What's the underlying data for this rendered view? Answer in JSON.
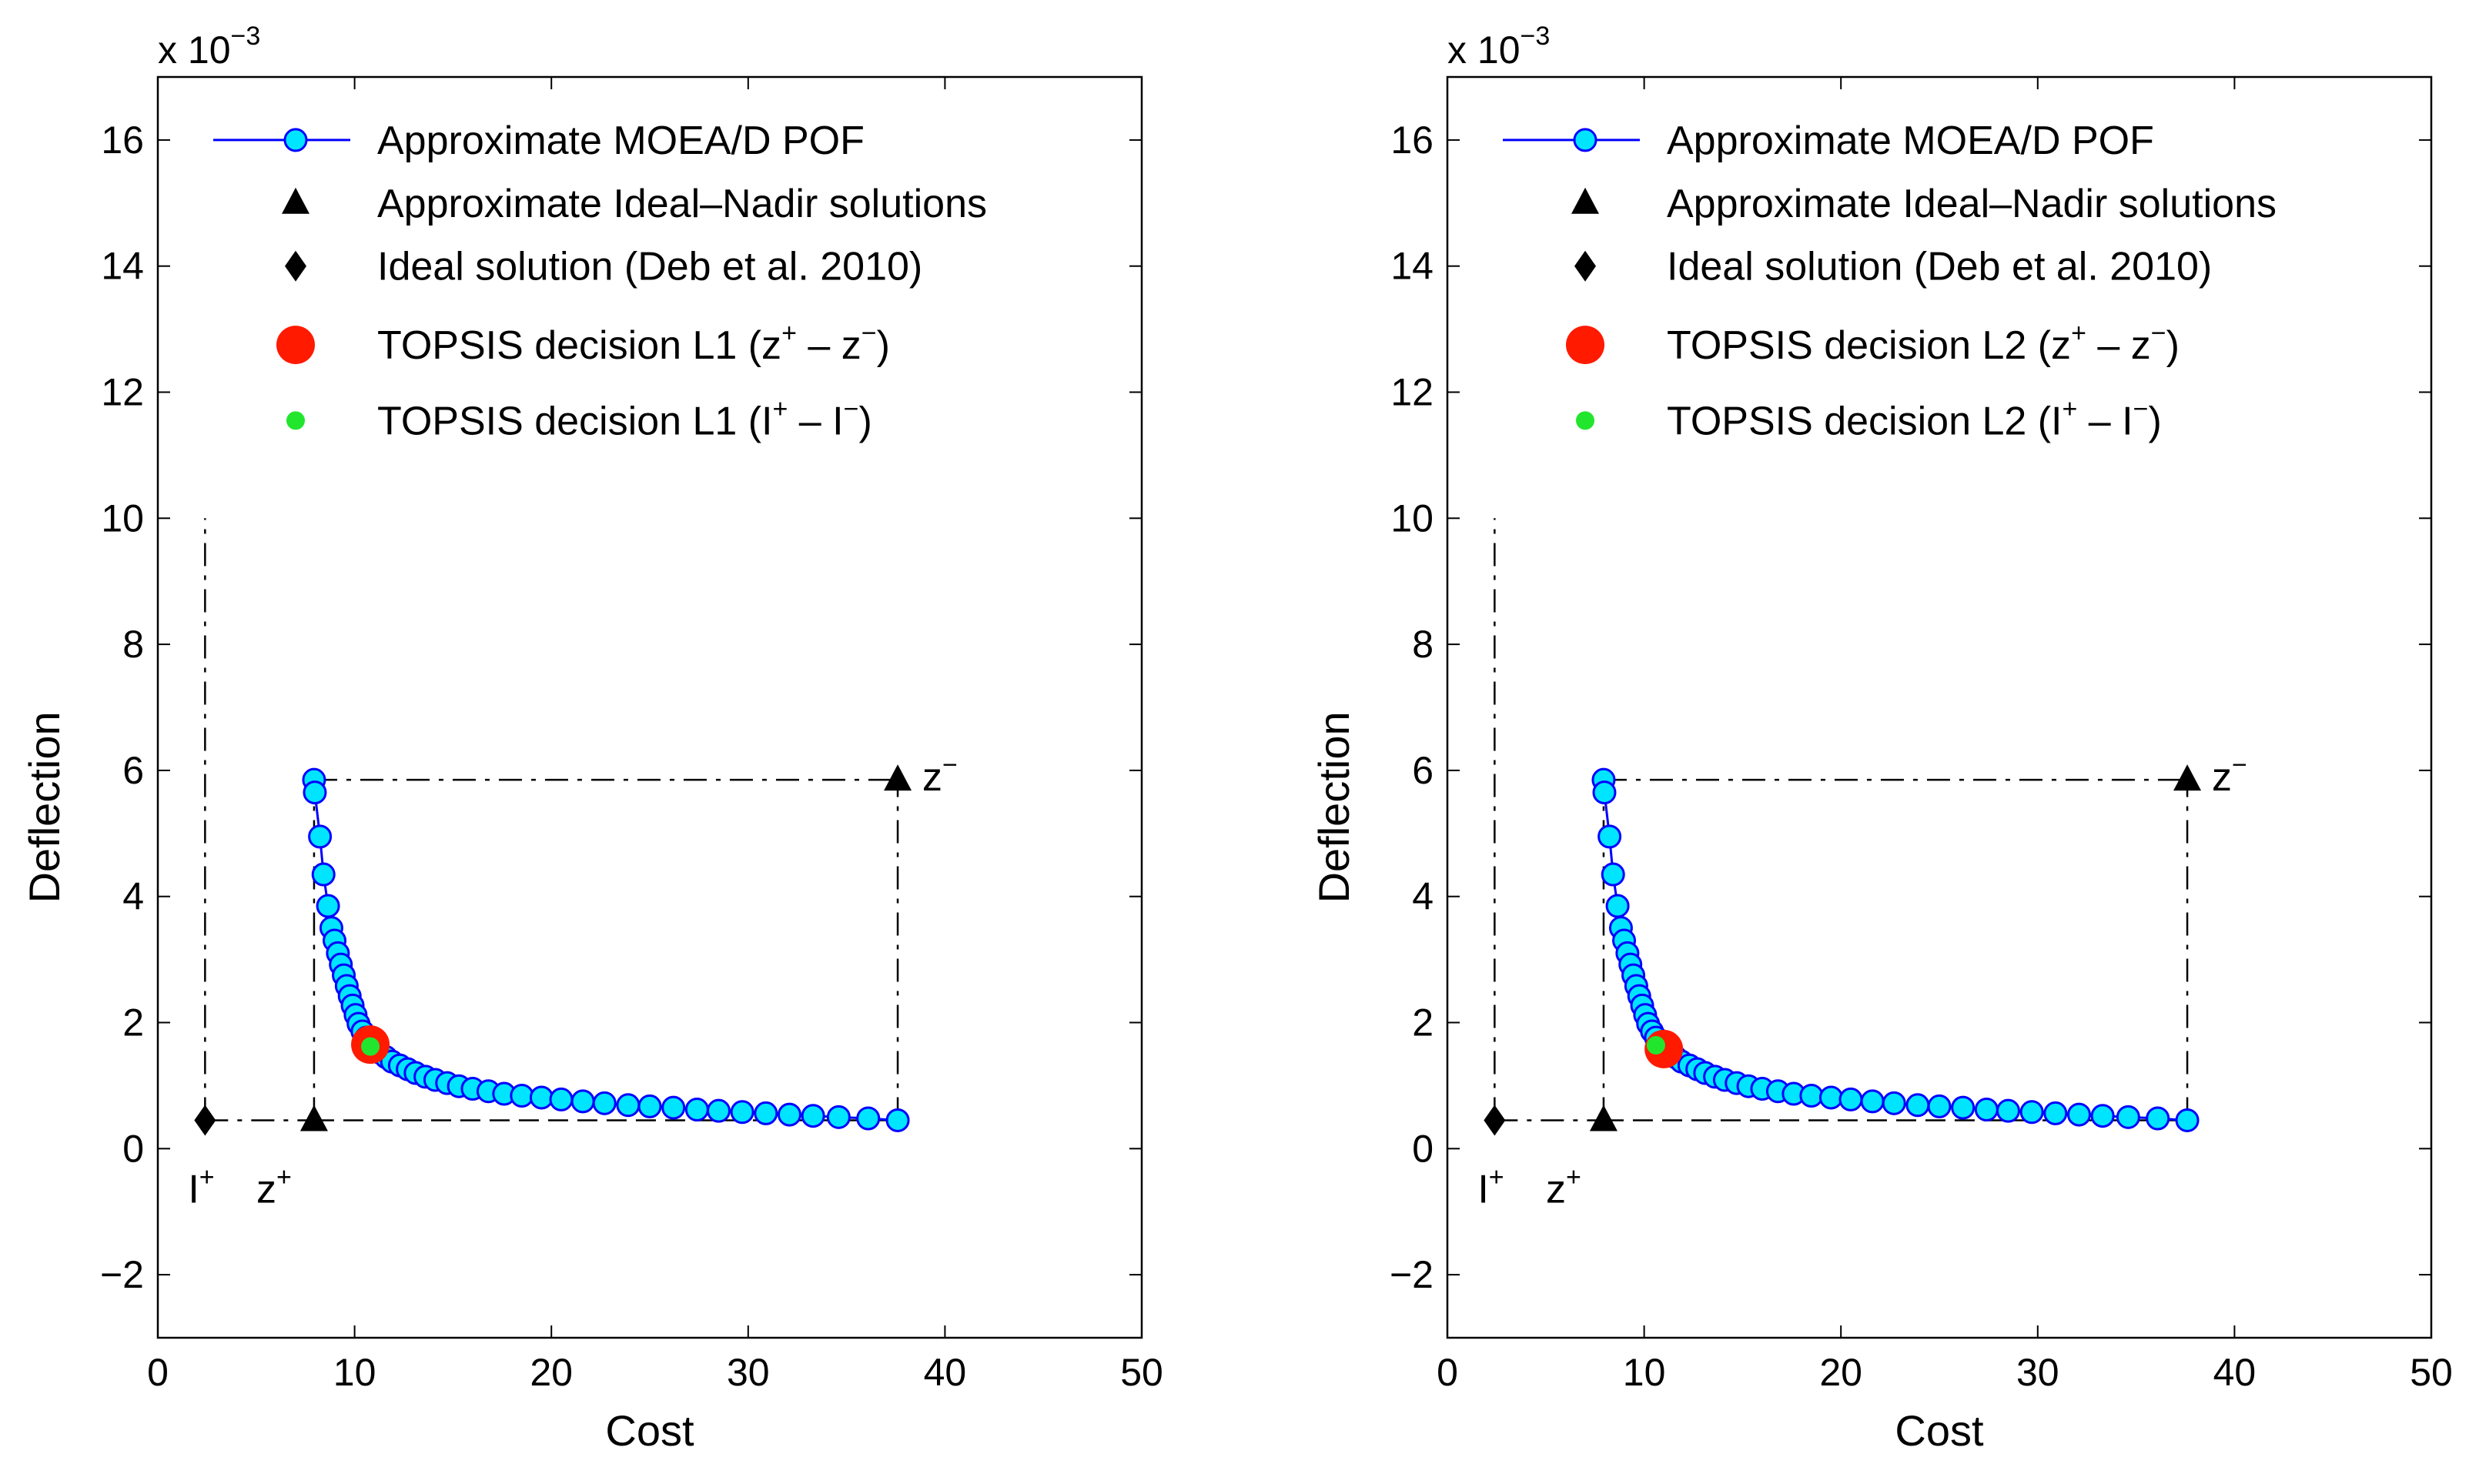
{
  "chart_data": [
    {
      "type": "scatter",
      "panel": "left",
      "xlabel": "Cost",
      "ylabel": "Deflection",
      "xlim": [
        0,
        50
      ],
      "ylim": [
        -3,
        17
      ],
      "yscale_label": "x 10",
      "yscale_exp": "−3",
      "xticks": [
        "0",
        "10",
        "20",
        "30",
        "40",
        "50"
      ],
      "yticks": [
        "−2",
        "0",
        "2",
        "4",
        "6",
        "8",
        "10",
        "12",
        "14",
        "16"
      ],
      "legend": [
        {
          "label": "Approximate MOEA/D POF"
        },
        {
          "label": "Approximate Ideal–Nadir solutions"
        },
        {
          "label": "Ideal solution (Deb et al. 2010)"
        },
        {
          "label": "TOPSIS decision L1 (z",
          "sup1": "+",
          "mid": " – z",
          "sup2": "−",
          "end": ")"
        },
        {
          "label": "TOPSIS decision L1 (I",
          "sup1": "+",
          "mid": " – I",
          "sup2": "−",
          "end": ")"
        }
      ],
      "pof": {
        "x": [
          7.94,
          7.98,
          8.24,
          8.42,
          8.65,
          8.82,
          8.98,
          9.15,
          9.3,
          9.45,
          9.6,
          9.75,
          9.9,
          10.05,
          10.2,
          10.4,
          10.6,
          10.8,
          11.0,
          11.3,
          11.6,
          11.9,
          12.3,
          12.7,
          13.1,
          13.6,
          14.1,
          14.7,
          15.3,
          16.0,
          16.8,
          17.6,
          18.5,
          19.5,
          20.5,
          21.6,
          22.7,
          23.9,
          25.0,
          26.2,
          27.4,
          28.5,
          29.7,
          30.9,
          32.1,
          33.3,
          34.6,
          36.1,
          37.6
        ],
        "y": [
          5.85,
          5.65,
          4.95,
          4.35,
          3.85,
          3.5,
          3.3,
          3.1,
          2.92,
          2.75,
          2.58,
          2.42,
          2.27,
          2.12,
          1.98,
          1.86,
          1.76,
          1.68,
          1.6,
          1.52,
          1.45,
          1.38,
          1.32,
          1.26,
          1.2,
          1.14,
          1.09,
          1.04,
          0.99,
          0.95,
          0.91,
          0.87,
          0.84,
          0.81,
          0.78,
          0.75,
          0.72,
          0.69,
          0.67,
          0.65,
          0.62,
          0.6,
          0.58,
          0.56,
          0.54,
          0.52,
          0.5,
          0.48,
          0.45
        ]
      },
      "ideal_nadir": [
        [
          7.94,
          0.45
        ],
        [
          37.6,
          5.85
        ]
      ],
      "ideal_deb": [
        2.4,
        0.45
      ],
      "topsis_z": [
        10.8,
        1.65
      ],
      "topsis_i": [
        10.8,
        1.62
      ],
      "guide_vertical_x": 2.4,
      "guide_vertical_top": 10,
      "label_I": "I",
      "label_z": "z",
      "sup_plus": "+",
      "sup_minus": "−"
    },
    {
      "type": "scatter",
      "panel": "right",
      "xlabel": "Cost",
      "ylabel": "Deflection",
      "xlim": [
        0,
        50
      ],
      "ylim": [
        -3,
        17
      ],
      "yscale_label": "x 10",
      "yscale_exp": "−3",
      "xticks": [
        "0",
        "10",
        "20",
        "30",
        "40",
        "50"
      ],
      "yticks": [
        "−2",
        "0",
        "2",
        "4",
        "6",
        "8",
        "10",
        "12",
        "14",
        "16"
      ],
      "legend": [
        {
          "label": "Approximate MOEA/D POF"
        },
        {
          "label": "Approximate Ideal–Nadir solutions"
        },
        {
          "label": "Ideal solution (Deb et al. 2010)"
        },
        {
          "label": "TOPSIS decision L2 (z",
          "sup1": "+",
          "mid": " – z",
          "sup2": "−",
          "end": ")"
        },
        {
          "label": "TOPSIS decision L2 (I",
          "sup1": "+",
          "mid": " – I",
          "sup2": "−",
          "end": ")"
        }
      ],
      "pof": {
        "x": [
          7.94,
          7.98,
          8.24,
          8.42,
          8.65,
          8.82,
          8.98,
          9.15,
          9.3,
          9.45,
          9.6,
          9.75,
          9.9,
          10.05,
          10.2,
          10.4,
          10.6,
          10.8,
          11.0,
          11.3,
          11.6,
          11.9,
          12.3,
          12.7,
          13.1,
          13.6,
          14.1,
          14.7,
          15.3,
          16.0,
          16.8,
          17.6,
          18.5,
          19.5,
          20.5,
          21.6,
          22.7,
          23.9,
          25.0,
          26.2,
          27.4,
          28.5,
          29.7,
          30.9,
          32.1,
          33.3,
          34.6,
          36.1,
          37.6
        ],
        "y": [
          5.85,
          5.65,
          4.95,
          4.35,
          3.85,
          3.5,
          3.3,
          3.1,
          2.92,
          2.75,
          2.58,
          2.42,
          2.27,
          2.12,
          1.98,
          1.86,
          1.76,
          1.68,
          1.6,
          1.52,
          1.45,
          1.38,
          1.32,
          1.26,
          1.2,
          1.14,
          1.09,
          1.04,
          0.99,
          0.95,
          0.91,
          0.87,
          0.84,
          0.81,
          0.78,
          0.75,
          0.72,
          0.69,
          0.67,
          0.65,
          0.62,
          0.6,
          0.58,
          0.56,
          0.54,
          0.52,
          0.5,
          0.48,
          0.45
        ]
      },
      "ideal_nadir": [
        [
          7.94,
          0.45
        ],
        [
          37.6,
          5.85
        ]
      ],
      "ideal_deb": [
        2.4,
        0.45
      ],
      "topsis_z": [
        11.0,
        1.58
      ],
      "topsis_i": [
        10.6,
        1.64
      ],
      "guide_vertical_x": 2.4,
      "guide_vertical_top": 10,
      "label_I": "I",
      "label_z": "z",
      "sup_plus": "+",
      "sup_minus": "−"
    }
  ]
}
